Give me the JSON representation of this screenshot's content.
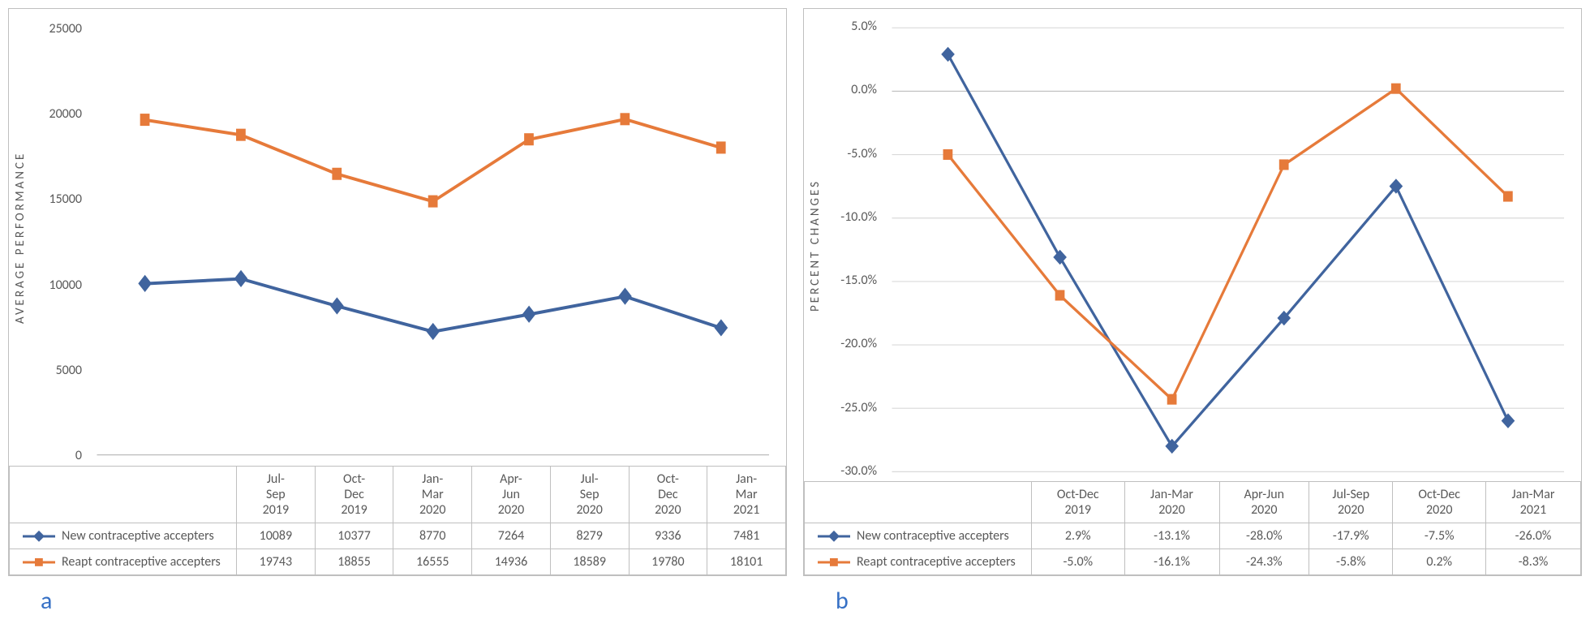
{
  "chart_a": {
    "type": "line",
    "y_label": "AVERAGE PERFORMANCE",
    "categories": [
      "Jul-Sep 2019",
      "Oct-Dec 2019",
      "Jan-Mar 2020",
      "Apr-Jun 2020",
      "Jul-Sep 2020",
      "Oct-Dec 2020",
      "Jan-Mar 2021"
    ],
    "categories_line1": [
      "Jul-",
      "Oct-",
      "Jan-",
      "Apr-",
      "Jul-",
      "Oct-",
      "Jan-"
    ],
    "categories_line2": [
      "Sep",
      "Dec",
      "Mar",
      "Jun",
      "Sep",
      "Dec",
      "Mar"
    ],
    "categories_line3": [
      "2019",
      "2019",
      "2020",
      "2020",
      "2020",
      "2020",
      "2021"
    ],
    "ylim": [
      0,
      25000
    ],
    "ytick_step": 5000,
    "yticks": [
      "25000",
      "20000",
      "15000",
      "10000",
      "5000",
      "0"
    ],
    "series": [
      {
        "name": "New contraceptive accepters",
        "color": "#40649e",
        "marker": "diamond",
        "values": [
          10089,
          10377,
          8770,
          7264,
          8279,
          9336,
          7481
        ],
        "display": [
          "10089",
          "10377",
          "8770",
          "7264",
          "8279",
          "9336",
          "7481"
        ]
      },
      {
        "name": "Reapt contraceptive accepters",
        "color": "#e67a3a",
        "marker": "square",
        "values": [
          19743,
          18855,
          16555,
          14936,
          18589,
          19780,
          18101
        ],
        "display": [
          "19743",
          "18855",
          "16555",
          "14936",
          "18589",
          "19780",
          "18101"
        ]
      }
    ],
    "caption": "a",
    "background_color": "#ffffff",
    "border_color": "#bfbfbf",
    "text_color": "#595959",
    "line_width": 3,
    "marker_size": 8
  },
  "chart_b": {
    "type": "line",
    "y_label": "PERCENT CHANGES",
    "categories": [
      "Oct-Dec 2019",
      "Jan-Mar 2020",
      "Apr-Jun 2020",
      "Jul-Sep 2020",
      "Oct-Dec 2020",
      "Jan-Mar 2021"
    ],
    "categories_line1": [
      "Oct-Dec",
      "Jan-Mar",
      "Apr-Jun",
      "Jul-Sep",
      "Oct-Dec",
      "Jan-Mar"
    ],
    "categories_line2": [
      "2019",
      "2020",
      "2020",
      "2020",
      "2020",
      "2021"
    ],
    "ylim": [
      -30,
      5
    ],
    "ytick_step": 5,
    "yticks": [
      "5.0%",
      "0.0%",
      "-5.0%",
      "-10.0%",
      "-15.0%",
      "-20.0%",
      "-25.0%",
      "-30.0%"
    ],
    "series": [
      {
        "name": "New contraceptive accepters",
        "color": "#40649e",
        "marker": "diamond",
        "values": [
          2.9,
          -13.1,
          -28.0,
          -17.9,
          -7.5,
          -26.0
        ],
        "display": [
          "2.9%",
          "-13.1%",
          "-28.0%",
          "-17.9%",
          "-7.5%",
          "-26.0%"
        ]
      },
      {
        "name": "Reapt contraceptive accepters",
        "color": "#e67a3a",
        "marker": "square",
        "values": [
          -5.0,
          -16.1,
          -24.3,
          -5.8,
          0.2,
          -8.3
        ],
        "display": [
          "-5.0%",
          "-16.1%",
          "-24.3%",
          "-5.8%",
          "0.2%",
          "-8.3%"
        ]
      }
    ],
    "caption": "b",
    "background_color": "#ffffff",
    "border_color": "#bfbfbf",
    "text_color": "#595959",
    "grid_color": "#d9d9d9",
    "line_width": 3,
    "marker_size": 8
  }
}
